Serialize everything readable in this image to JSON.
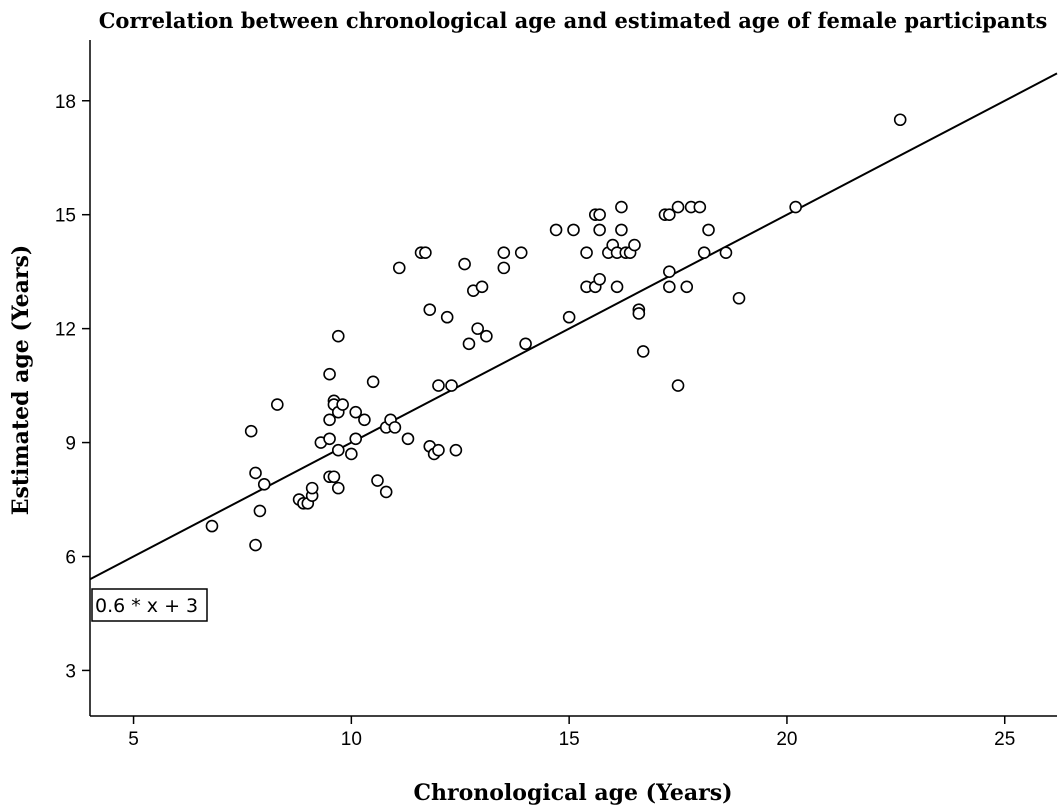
{
  "chart_data": {
    "type": "scatter",
    "title": "Correlation between chronological age and estimated age of female participants",
    "xlabel": "Chronological age (Years)",
    "ylabel": "Estimated age (Years)",
    "xlim": [
      4,
      26.2
    ],
    "ylim": [
      1.8,
      19.6
    ],
    "xticks": [
      5,
      10,
      15,
      20,
      25
    ],
    "yticks": [
      3,
      6,
      9,
      12,
      15,
      18
    ],
    "grid": false,
    "fit_line": {
      "label": "0.6 * x + 3",
      "slope": 0.6,
      "intercept": 3
    },
    "marker_color": "#000000",
    "points": [
      [
        6.8,
        6.8
      ],
      [
        7.7,
        9.3
      ],
      [
        7.8,
        8.2
      ],
      [
        7.8,
        6.3
      ],
      [
        7.9,
        7.2
      ],
      [
        8.0,
        7.9
      ],
      [
        8.3,
        10.0
      ],
      [
        8.8,
        7.5
      ],
      [
        8.9,
        7.4
      ],
      [
        9.0,
        7.4
      ],
      [
        9.1,
        7.6
      ],
      [
        9.1,
        7.8
      ],
      [
        9.3,
        9.0
      ],
      [
        9.5,
        8.1
      ],
      [
        9.5,
        9.1
      ],
      [
        9.5,
        9.6
      ],
      [
        9.5,
        10.8
      ],
      [
        9.6,
        8.1
      ],
      [
        9.6,
        10.1
      ],
      [
        9.6,
        10.0
      ],
      [
        9.7,
        7.8
      ],
      [
        9.7,
        8.8
      ],
      [
        9.7,
        9.8
      ],
      [
        9.7,
        11.8
      ],
      [
        9.8,
        10.0
      ],
      [
        10.0,
        8.7
      ],
      [
        10.1,
        9.1
      ],
      [
        10.1,
        9.8
      ],
      [
        10.3,
        9.6
      ],
      [
        10.5,
        10.6
      ],
      [
        10.6,
        8.0
      ],
      [
        10.8,
        7.7
      ],
      [
        10.8,
        9.4
      ],
      [
        10.9,
        9.6
      ],
      [
        11.0,
        9.4
      ],
      [
        11.1,
        13.6
      ],
      [
        11.3,
        9.1
      ],
      [
        11.6,
        14.0
      ],
      [
        11.7,
        14.0
      ],
      [
        11.8,
        12.5
      ],
      [
        11.8,
        8.9
      ],
      [
        11.9,
        8.7
      ],
      [
        12.0,
        8.8
      ],
      [
        12.0,
        10.5
      ],
      [
        12.2,
        12.3
      ],
      [
        12.3,
        10.5
      ],
      [
        12.4,
        8.8
      ],
      [
        12.6,
        13.7
      ],
      [
        12.7,
        11.6
      ],
      [
        12.8,
        13.0
      ],
      [
        12.9,
        12.0
      ],
      [
        13.0,
        13.1
      ],
      [
        13.1,
        11.8
      ],
      [
        13.5,
        14.0
      ],
      [
        13.5,
        13.6
      ],
      [
        13.9,
        14.0
      ],
      [
        14.0,
        11.6
      ],
      [
        14.7,
        14.6
      ],
      [
        15.0,
        12.3
      ],
      [
        15.1,
        14.6
      ],
      [
        15.4,
        14.0
      ],
      [
        15.4,
        13.1
      ],
      [
        15.6,
        13.1
      ],
      [
        15.6,
        15.0
      ],
      [
        15.7,
        15.0
      ],
      [
        15.7,
        14.6
      ],
      [
        15.7,
        13.3
      ],
      [
        15.9,
        14.0
      ],
      [
        16.0,
        14.2
      ],
      [
        16.1,
        14.0
      ],
      [
        16.1,
        13.1
      ],
      [
        16.2,
        15.2
      ],
      [
        16.2,
        14.6
      ],
      [
        16.3,
        14.0
      ],
      [
        16.4,
        14.0
      ],
      [
        16.5,
        14.2
      ],
      [
        16.6,
        12.5
      ],
      [
        16.6,
        12.4
      ],
      [
        16.7,
        11.4
      ],
      [
        17.2,
        15.0
      ],
      [
        17.3,
        15.0
      ],
      [
        17.3,
        13.5
      ],
      [
        17.3,
        13.1
      ],
      [
        17.5,
        15.2
      ],
      [
        17.5,
        10.5
      ],
      [
        17.7,
        13.1
      ],
      [
        17.8,
        15.2
      ],
      [
        18.0,
        15.2
      ],
      [
        18.1,
        14.0
      ],
      [
        18.2,
        14.6
      ],
      [
        18.6,
        14.0
      ],
      [
        18.9,
        12.8
      ],
      [
        20.2,
        15.2
      ],
      [
        22.6,
        17.5
      ]
    ]
  }
}
